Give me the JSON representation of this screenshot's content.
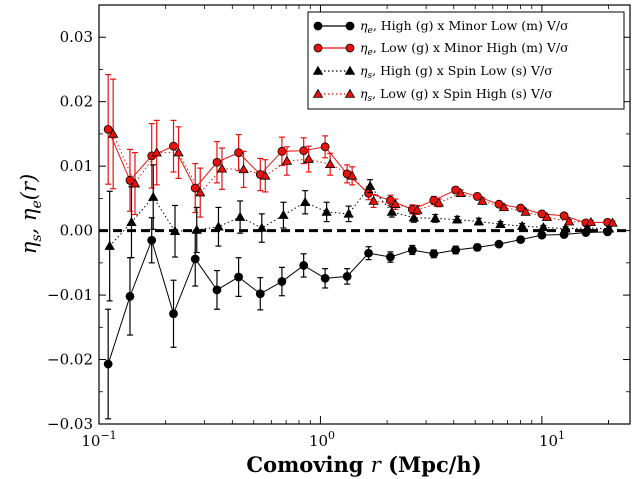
{
  "chart_data": {
    "type": "line",
    "title": "",
    "xlabel": "Comoving r (Mpc/h)",
    "ylabel": "η_s, η_e(r)",
    "xscale": "log",
    "xlim": [
      0.1,
      25
    ],
    "ylim": [
      -0.03,
      0.035
    ],
    "x_ticks": [
      0.1,
      1,
      10
    ],
    "x_tick_labels": [
      "10^-1",
      "10^0",
      "10^1"
    ],
    "y_ticks": [
      -0.03,
      -0.02,
      -0.01,
      0.0,
      0.01,
      0.02,
      0.03
    ],
    "y_tick_labels": [
      "−0.03",
      "−0.02",
      "−0.01",
      "0.00",
      "0.01",
      "0.02",
      "0.03"
    ],
    "grid": false,
    "legend_position": "top-right",
    "reference_line": {
      "y": 0.0,
      "style": "dashed",
      "color": "#000000"
    },
    "x": [
      0.11,
      0.138,
      0.173,
      0.217,
      0.272,
      0.341,
      0.427,
      0.535,
      0.67,
      0.84,
      1.05,
      1.32,
      1.65,
      2.07,
      2.6,
      3.25,
      4.08,
      5.11,
      6.4,
      8.02,
      10.0,
      12.6,
      15.8,
      19.8
    ],
    "series": [
      {
        "name": "η_e, High (g) x Minor Low (m) V/σ",
        "marker": "circle",
        "line": "solid",
        "color": "#000000",
        "values": [
          -0.0207,
          -0.0102,
          -0.0015,
          -0.0129,
          -0.0044,
          -0.0092,
          -0.0072,
          -0.0098,
          -0.0079,
          -0.0054,
          -0.0074,
          -0.0071,
          -0.0035,
          -0.0041,
          -0.003,
          -0.0036,
          -0.003,
          -0.0026,
          -0.0021,
          -0.0014,
          -0.0007,
          -0.0006,
          -0.0003,
          -0.0002
        ],
        "errors": [
          0.0085,
          0.006,
          0.0035,
          0.0052,
          0.0042,
          0.003,
          0.003,
          0.0025,
          0.0022,
          0.0018,
          0.0015,
          0.0012,
          0.001,
          0.0008,
          0.0007,
          0.0006,
          0.0006,
          0.0005,
          0.0004,
          0.0004,
          0.0004,
          0.0003,
          0.0003,
          0.0003
        ]
      },
      {
        "name": "η_e, Low (g) x Minor High (m) V/σ",
        "marker": "circle",
        "line": "solid",
        "color": "#e8120c",
        "values": [
          0.0157,
          0.0078,
          0.0116,
          0.0131,
          0.0066,
          0.0106,
          0.0121,
          0.0087,
          0.0123,
          0.0124,
          0.013,
          0.0088,
          0.0058,
          0.0047,
          0.0033,
          0.0047,
          0.0063,
          0.0053,
          0.0041,
          0.0035,
          0.0026,
          0.0023,
          0.0012,
          0.0013
        ],
        "errors": [
          0.0085,
          0.0048,
          0.005,
          0.004,
          0.0038,
          0.0032,
          0.0028,
          0.0025,
          0.0022,
          0.002,
          0.0017,
          0.0014,
          0.001,
          0.0008,
          0.0007,
          0.0006,
          0.0005,
          0.0005,
          0.0004,
          0.0004,
          0.0004,
          0.0003,
          0.0003,
          0.0003
        ]
      },
      {
        "name": "η_s, High (g) x Spin Low (s) V/σ",
        "marker": "triangle",
        "line": "dotted",
        "color": "#000000",
        "values": [
          -0.0024,
          0.0013,
          0.0052,
          -0.0001,
          0.0001,
          0.0006,
          0.0021,
          0.0004,
          0.0024,
          0.0044,
          0.0029,
          0.0026,
          0.0069,
          0.0029,
          0.002,
          0.0019,
          0.0017,
          0.0014,
          0.001,
          0.0007,
          0.0005,
          0.0003,
          0.0004,
          0.0003
        ],
        "errors": [
          0.0085,
          0.0055,
          0.005,
          0.004,
          0.0035,
          0.003,
          0.0025,
          0.0022,
          0.002,
          0.0018,
          0.0015,
          0.0012,
          0.001,
          0.0008,
          0.0007,
          0.0006,
          0.0005,
          0.0005,
          0.0004,
          0.0004,
          0.0003,
          0.0003,
          0.0003,
          0.0003
        ]
      },
      {
        "name": "η_s, Low (g) x Spin High (s) V/σ",
        "marker": "triangle",
        "line": "dotted",
        "color": "#e8120c",
        "values": [
          0.015,
          0.0073,
          0.0121,
          0.0121,
          0.0059,
          0.0096,
          0.0095,
          0.0085,
          0.0108,
          0.0111,
          0.0103,
          0.0085,
          0.0046,
          0.0041,
          0.0032,
          0.0043,
          0.0058,
          0.0046,
          0.0036,
          0.0029,
          0.0021,
          0.0014,
          0.0013,
          0.0012
        ],
        "errors": [
          0.0085,
          0.0048,
          0.005,
          0.004,
          0.0038,
          0.0032,
          0.0028,
          0.0025,
          0.0022,
          0.002,
          0.0017,
          0.0014,
          0.001,
          0.0008,
          0.0007,
          0.0006,
          0.0005,
          0.0005,
          0.0004,
          0.0004,
          0.0004,
          0.0003,
          0.0003,
          0.0003
        ]
      }
    ]
  },
  "legend": {
    "entries": [
      {
        "prefix": "η",
        "sub": "e",
        "text": ", High (g) x Minor Low (m) V/σ"
      },
      {
        "prefix": "η",
        "sub": "e",
        "text": ", Low (g) x Minor High (m) V/σ"
      },
      {
        "prefix": "η",
        "sub": "s",
        "text": ", High (g) x Spin Low (s) V/σ"
      },
      {
        "prefix": "η",
        "sub": "s",
        "text": ", Low (g) x Spin High (s) V/σ"
      }
    ]
  },
  "axes": {
    "ylabel_parts": {
      "eta": "η",
      "sub1": "s",
      "mid": ", η",
      "sub2": "e",
      "tail": "(r)"
    },
    "xlabel_parts": {
      "pre": "Comoving ",
      "r": "r",
      "post": " (Mpc/h)"
    },
    "x_tick_base": "10",
    "x_tick_exps": [
      "−1",
      "0",
      "1"
    ]
  }
}
